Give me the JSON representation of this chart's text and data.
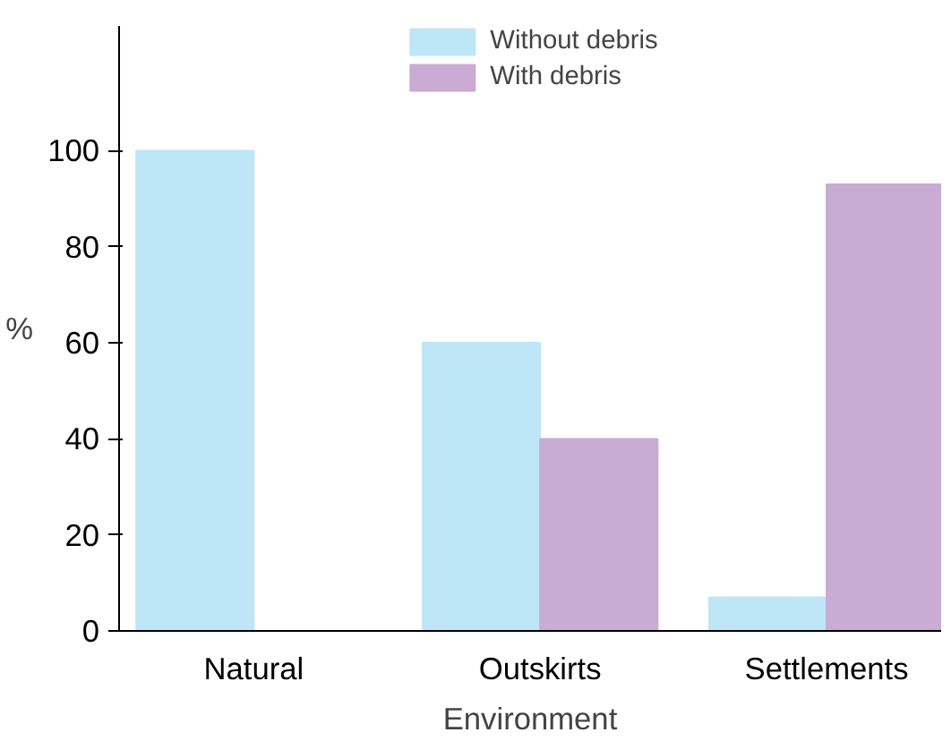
{
  "chart_data": {
    "type": "bar",
    "xlabel": "Environment",
    "ylabel": "%",
    "categories": [
      "Natural",
      "Outskirts",
      "Settlements"
    ],
    "series": [
      {
        "name": "Without debris",
        "color": "#bde6f6",
        "values": [
          100,
          60,
          7
        ]
      },
      {
        "name": "With debris",
        "color": "#c9abd3",
        "values": [
          null,
          40,
          93
        ]
      }
    ],
    "ylim": [
      0,
      126
    ],
    "yticks": [
      0,
      20,
      40,
      60,
      80,
      100
    ],
    "grid": false,
    "legend": "top"
  }
}
